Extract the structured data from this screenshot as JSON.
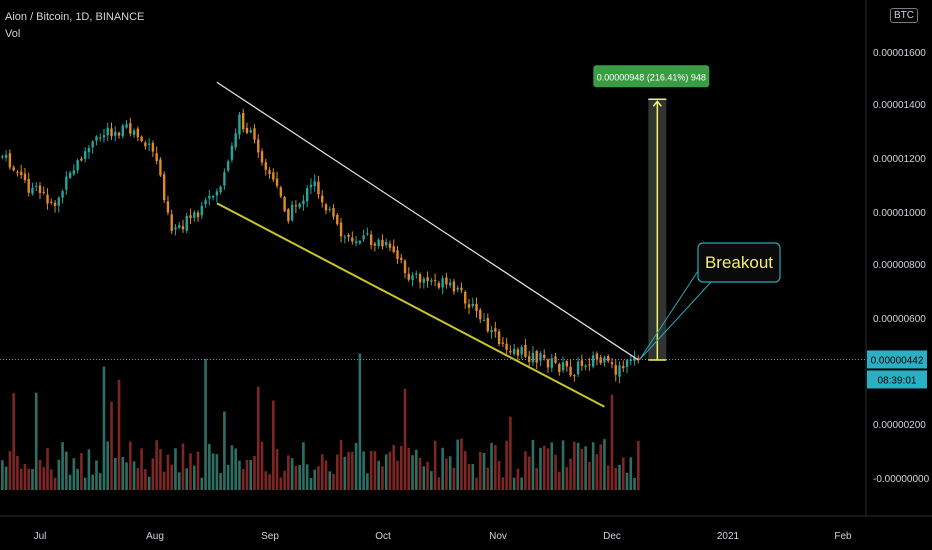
{
  "header": {
    "title": "Aion / Bitcoin, 1D, BINANCE",
    "indicator": "Vol",
    "currency_button": "BTC"
  },
  "colors": {
    "background": "#000000",
    "up": "#26a69a",
    "down": "#e08a2a",
    "vol_up": "#2e6f63",
    "vol_down": "#7d2624",
    "resistance": "#e6e6e6",
    "support": "#c8c62a",
    "measure": "#f5f06a",
    "callout_border": "#2aa7b8",
    "callout_text": "#f5f06a",
    "price_line": "#2ab0c4",
    "label_green": "#3a9d44"
  },
  "annotations": {
    "measure_label": "0.00000948 (216.41%) 948",
    "callout": "Breakout",
    "price_tag": "0.00000442",
    "countdown": "08:39:01"
  },
  "chart_data": {
    "type": "candlestick",
    "title": "Aion / Bitcoin, 1D, BINANCE",
    "y_ticks": [
      "0.00001600",
      "0.00001400",
      "0.00001200",
      "0.00001000",
      "0.00000800",
      "0.00000600",
      "0.00000200",
      "-0.00000000"
    ],
    "x_ticks": [
      "Jul",
      "Aug",
      "Sep",
      "Oct",
      "Nov",
      "Dec",
      "2021",
      "Feb"
    ],
    "last_price": "0.00000442",
    "price_range_visible": [
      3.3e-06,
      1.42e-05
    ],
    "trendlines": [
      {
        "name": "resistance",
        "from": [
          "2020-08-17",
          1.45e-05
        ],
        "to": [
          "2020-12-07",
          4.4e-06
        ]
      },
      {
        "name": "support",
        "from": [
          "2020-08-17",
          1.01e-05
        ],
        "to": [
          "2020-11-28",
          2.7e-06
        ]
      }
    ],
    "measure": {
      "from": [
        "2020-12-07",
        4.4e-06
      ],
      "to": [
        "2020-12-07",
        1.388e-05
      ],
      "change": "0.00000948 (216.41%) 948"
    },
    "close_path": [
      {
        "date": "2020-06-21",
        "close": 1.18e-05
      },
      {
        "date": "2020-06-28",
        "close": 1.07e-05
      },
      {
        "date": "2020-07-05",
        "close": 1.01e-05
      },
      {
        "date": "2020-07-12",
        "close": 1.18e-05
      },
      {
        "date": "2020-07-19",
        "close": 1.28e-05
      },
      {
        "date": "2020-07-26",
        "close": 1.27e-05
      },
      {
        "date": "2020-08-01",
        "close": 1.17e-05
      },
      {
        "date": "2020-08-05",
        "close": 9.2e-06
      },
      {
        "date": "2020-08-12",
        "close": 9.6e-06
      },
      {
        "date": "2020-08-19",
        "close": 1.1e-05
      },
      {
        "date": "2020-08-23",
        "close": 1.32e-05
      },
      {
        "date": "2020-08-28",
        "close": 1.21e-05
      },
      {
        "date": "2020-09-05",
        "close": 9.7e-06
      },
      {
        "date": "2020-09-12",
        "close": 1.08e-05
      },
      {
        "date": "2020-09-19",
        "close": 8.9e-06
      },
      {
        "date": "2020-09-26",
        "close": 8.8e-06
      },
      {
        "date": "2020-10-01",
        "close": 8.5e-06
      },
      {
        "date": "2020-10-08",
        "close": 7.4e-06
      },
      {
        "date": "2020-10-15",
        "close": 7.2e-06
      },
      {
        "date": "2020-10-22",
        "close": 6.7e-06
      },
      {
        "date": "2020-10-29",
        "close": 5.3e-06
      },
      {
        "date": "2020-11-05",
        "close": 4.7e-06
      },
      {
        "date": "2020-11-12",
        "close": 4.4e-06
      },
      {
        "date": "2020-11-19",
        "close": 4e-06
      },
      {
        "date": "2020-11-25",
        "close": 4.5e-06
      },
      {
        "date": "2020-12-01",
        "close": 4e-06
      },
      {
        "date": "2020-12-07",
        "close": 4.4e-06
      }
    ]
  }
}
